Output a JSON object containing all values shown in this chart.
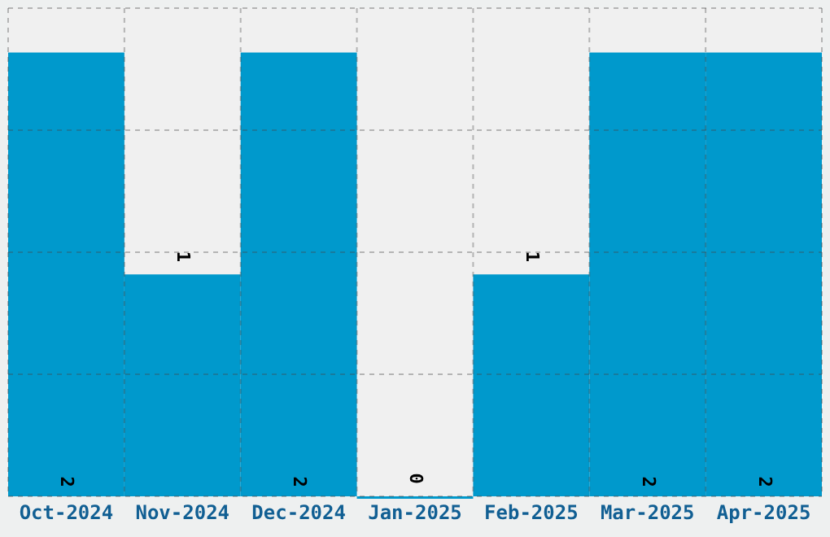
{
  "chart_data": {
    "type": "bar",
    "categories": [
      "Oct-2024",
      "Nov-2024",
      "Dec-2024",
      "Jan-2025",
      "Feb-2025",
      "Mar-2025",
      "Apr-2025"
    ],
    "values": [
      2,
      1,
      2,
      0,
      1,
      2,
      2
    ],
    "color": "#0099cc",
    "ylim": [
      0,
      2.2
    ],
    "yticks": [
      {
        "value": 0,
        "label": null
      },
      {
        "value": 0.55,
        "label": null
      },
      {
        "value": 1.1,
        "label": null
      },
      {
        "value": 1.65,
        "label": null
      },
      {
        "value": 2.2,
        "label": null
      }
    ],
    "tick_labels": "x",
    "grid": true,
    "data_labels": true
  }
}
